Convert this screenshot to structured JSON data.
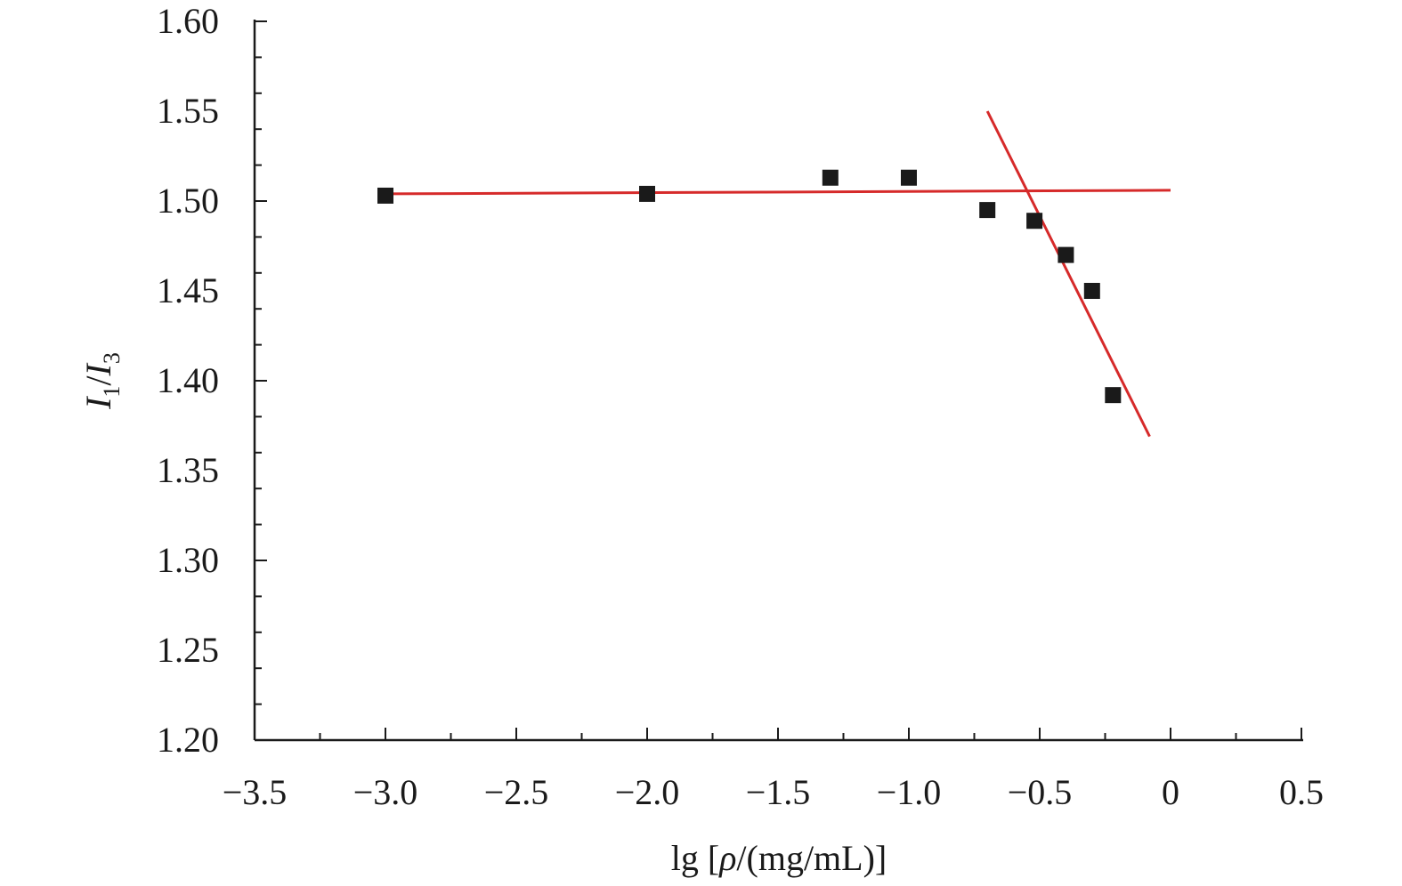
{
  "chart_data": {
    "type": "scatter",
    "xlabel": "lg [ρ/(mg/mL)]",
    "xlabel_parts": {
      "prefix": "lg [",
      "symbol": "ρ",
      "suffix": "/(mg/mL)]"
    },
    "ylabel": "I1/I3",
    "ylabel_parts": {
      "i": "I",
      "sub1": "1",
      "slash": "/",
      "sub3": "3"
    },
    "xlim": [
      -3.5,
      0.5
    ],
    "ylim": [
      1.2,
      1.6
    ],
    "x_ticks": [
      -3.5,
      -3.0,
      -2.5,
      -2.0,
      -1.5,
      -1.0,
      -0.5,
      0,
      0.5
    ],
    "x_tick_labels": [
      "−3.5",
      "−3.0",
      "−2.5",
      "−2.0",
      "−1.5",
      "−1.0",
      "−0.5",
      "0",
      "0.5"
    ],
    "y_ticks": [
      1.2,
      1.25,
      1.3,
      1.35,
      1.4,
      1.45,
      1.5,
      1.55,
      1.6
    ],
    "y_tick_labels": [
      "1.20",
      "1.25",
      "1.30",
      "1.35",
      "1.40",
      "1.45",
      "1.50",
      "1.55",
      "1.60"
    ],
    "grid": false,
    "series": [
      {
        "marker": "square",
        "color": "#1a1a1a",
        "points": [
          {
            "x": -3.0,
            "y": 1.503
          },
          {
            "x": -2.0,
            "y": 1.504
          },
          {
            "x": -1.3,
            "y": 1.513
          },
          {
            "x": -1.0,
            "y": 1.513
          },
          {
            "x": -0.7,
            "y": 1.495
          },
          {
            "x": -0.52,
            "y": 1.489
          },
          {
            "x": -0.4,
            "y": 1.47
          },
          {
            "x": -0.3,
            "y": 1.45
          },
          {
            "x": -0.22,
            "y": 1.392
          }
        ]
      }
    ],
    "fit_lines": [
      {
        "color": "#d62a2a",
        "x1": -3.0,
        "y1": 1.504,
        "x2": 0.0,
        "y2": 1.506
      },
      {
        "color": "#d62a2a",
        "x1": -0.7,
        "y1": 1.55,
        "x2": -0.08,
        "y2": 1.369
      }
    ]
  }
}
